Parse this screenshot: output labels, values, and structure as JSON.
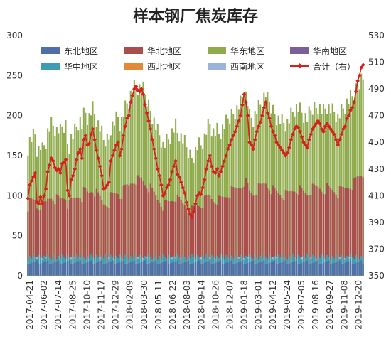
{
  "chart_data": {
    "type": "bar",
    "title": "样本钢厂焦炭库存",
    "y_left": {
      "min": 0,
      "max": 300,
      "ticks": [
        0,
        50,
        100,
        150,
        200,
        250,
        300
      ]
    },
    "y_right": {
      "min": 350,
      "max": 530,
      "ticks": [
        350,
        370,
        390,
        410,
        430,
        450,
        470,
        490,
        510,
        530
      ]
    },
    "x_ticks": [
      "2017-04-21",
      "2017-06-02",
      "2017-07-14",
      "2017-08-25",
      "2017-10-10",
      "2017-11-17",
      "2017-12-29",
      "2018-02-09",
      "2018-03-30",
      "2018-05-11",
      "2018-06-22",
      "2018-08-03",
      "2018-09-14",
      "2018-10-26",
      "2018-12-07",
      "2019-01-18",
      "2019-03-01",
      "2019-04-12",
      "2019-05-24",
      "2019-07-05",
      "2019-08-16",
      "2019-09-27",
      "2019-11-08",
      "2019-12-20"
    ],
    "legend": [
      {
        "name": "东北地区",
        "color": "#4f6fa8",
        "type": "bar"
      },
      {
        "name": "华北地区",
        "color": "#a84e4b",
        "type": "bar"
      },
      {
        "name": "华东地区",
        "color": "#8fab4c",
        "type": "bar"
      },
      {
        "name": "华南地区",
        "color": "#7a5f9a",
        "type": "bar"
      },
      {
        "name": "华中地区",
        "color": "#3f9db3",
        "type": "bar"
      },
      {
        "name": "西北地区",
        "color": "#e08a3a",
        "type": "bar"
      },
      {
        "name": "西南地区",
        "color": "#9db3d9",
        "type": "bar"
      },
      {
        "name": "合计（右）",
        "color": "#d62020",
        "type": "line"
      }
    ],
    "total_right_axis": [
      408,
      418,
      421,
      424,
      427,
      405,
      404,
      409,
      404,
      410,
      415,
      428,
      433,
      438,
      436,
      431,
      429,
      430,
      427,
      434,
      435,
      437,
      414,
      410,
      422,
      425,
      430,
      437,
      442,
      445,
      438,
      452,
      455,
      448,
      449,
      456,
      460,
      452,
      444,
      438,
      432,
      425,
      415,
      416,
      418,
      420,
      436,
      440,
      444,
      448,
      450,
      440,
      445,
      455,
      462,
      468,
      470,
      480,
      485,
      490,
      492,
      489,
      488,
      490,
      486,
      478,
      472,
      466,
      460,
      452,
      445,
      438,
      430,
      425,
      418,
      410,
      412,
      416,
      418,
      422,
      428,
      432,
      436,
      426,
      424,
      420,
      416,
      412,
      405,
      400,
      396,
      394,
      398,
      404,
      410,
      412,
      411,
      416,
      422,
      430,
      436,
      440,
      432,
      428,
      427,
      430,
      425,
      428,
      432,
      436,
      440,
      445,
      448,
      452,
      455,
      458,
      462,
      466,
      470,
      478,
      486,
      480,
      470,
      450,
      448,
      445,
      452,
      458,
      462,
      465,
      470,
      476,
      480,
      472,
      468,
      462,
      458,
      455,
      450,
      448,
      446,
      444,
      442,
      440,
      442,
      446,
      452,
      456,
      460,
      462,
      461,
      458,
      454,
      450,
      448,
      446,
      452,
      456,
      460,
      462,
      464,
      466,
      464,
      460,
      458,
      462,
      464,
      462,
      460,
      458,
      456,
      452,
      448,
      452,
      456,
      460,
      462,
      468,
      470,
      474,
      476,
      480,
      488,
      496,
      500,
      506,
      508
    ]
  }
}
